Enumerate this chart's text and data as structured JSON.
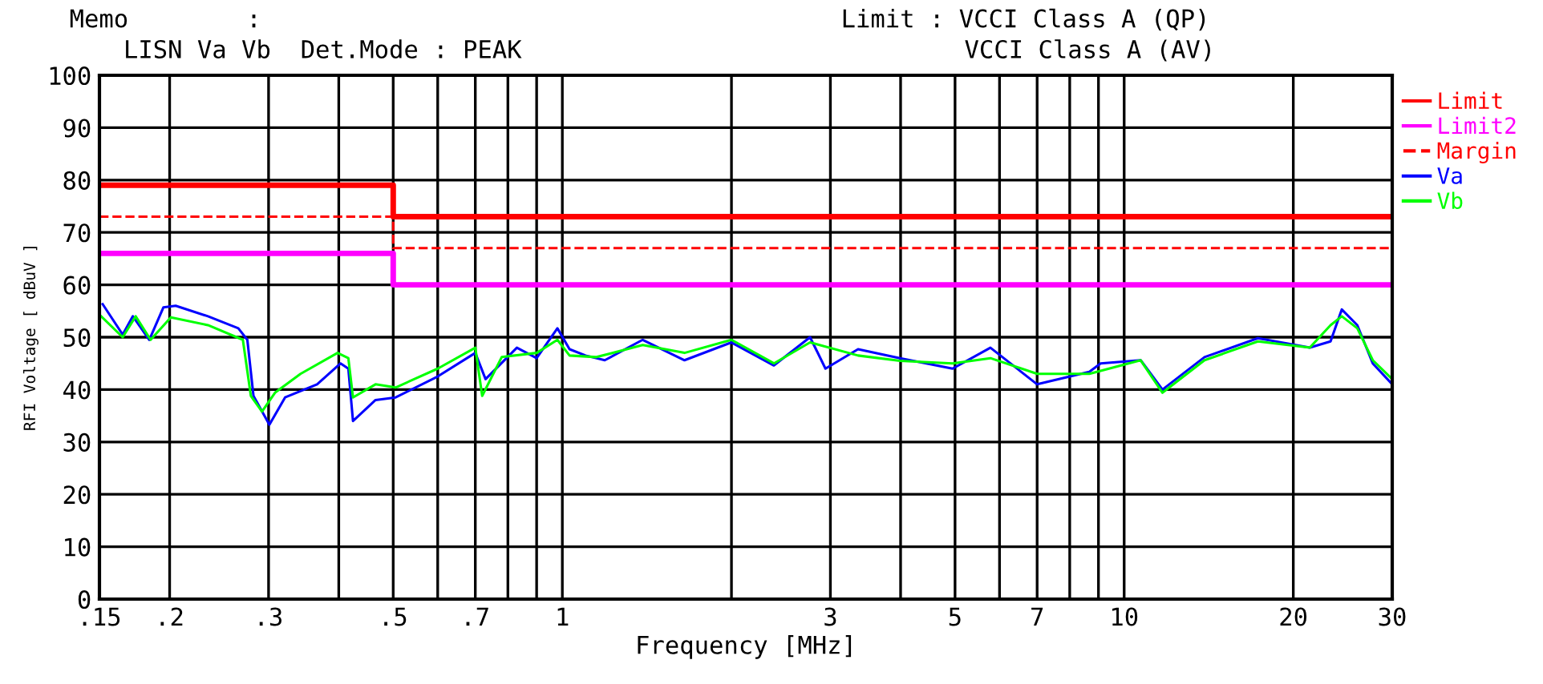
{
  "chart_data": {
    "type": "line",
    "xlabel": "Frequency [MHz]",
    "ylabel": "RFI Voltage [ dBuV ]",
    "annotations": [
      "Memo        :",
      "LISN Va Vb  Det.Mode : PEAK",
      "Limit : VCCI Class A (QP)",
      "VCCI Class A (AV)"
    ],
    "log": "x",
    "grid": true,
    "legend": "right",
    "xlim": [
      0.15,
      30
    ],
    "xticks": [
      {
        "value": 0.15,
        "label": ".15"
      },
      {
        "value": 0.2,
        "label": ".2"
      },
      {
        "value": 0.3,
        "label": ".3"
      },
      {
        "value": 0.4,
        "label": null
      },
      {
        "value": 0.5,
        "label": ".5"
      },
      {
        "value": 0.6,
        "label": null
      },
      {
        "value": 0.7,
        "label": ".7"
      },
      {
        "value": 0.8,
        "label": null
      },
      {
        "value": 0.9,
        "label": null
      },
      1,
      {
        "value": 2,
        "label": null
      },
      3,
      {
        "value": 4,
        "label": null
      },
      5,
      {
        "value": 6,
        "label": null
      },
      7,
      {
        "value": 8,
        "label": null
      },
      {
        "value": 9,
        "label": null
      },
      10,
      20,
      30
    ],
    "ylim": [
      0,
      100
    ],
    "yticks": [
      0,
      10,
      20,
      30,
      40,
      50,
      60,
      70,
      80,
      90,
      100
    ],
    "series": [
      {
        "name": "Limit",
        "color": "#ff0000",
        "x": [
          0.15,
          0.5,
          0.5,
          30
        ],
        "values": [
          79,
          79,
          73,
          73
        ]
      },
      {
        "name": "Limit2",
        "color": "#ff00ff",
        "x": [
          0.15,
          0.5,
          0.5,
          30
        ],
        "values": [
          66,
          66,
          60,
          60
        ]
      },
      {
        "name": "Margin",
        "color": "#ff0000",
        "line_style": "dashed",
        "x": [
          0.15,
          0.5,
          0.5,
          30
        ],
        "values": [
          73,
          73,
          67,
          67
        ]
      },
      {
        "name": "Va",
        "color": "#0000ff",
        "x": [
          0.152,
          0.165,
          0.172,
          0.184,
          0.195,
          0.205,
          0.234,
          0.265,
          0.275,
          0.282,
          0.301,
          0.321,
          0.366,
          0.403,
          0.416,
          0.424,
          0.465,
          0.505,
          0.6,
          0.7,
          0.73,
          0.83,
          0.9,
          0.98,
          1.03,
          1.1,
          1.19,
          1.39,
          1.65,
          2.0,
          2.38,
          2.76,
          2.94,
          3.36,
          3.99,
          4.95,
          5.78,
          7.0,
          8.67,
          9.08,
          10.7,
          11.7,
          13.9,
          17.3,
          21.4,
          23.3,
          24.4,
          26.0,
          27.7,
          30
        ],
        "values": [
          56.3,
          50.5,
          54,
          49.5,
          55.7,
          56,
          54,
          51.7,
          49.5,
          38.8,
          33.3,
          38.5,
          41,
          45,
          44,
          34,
          38,
          38.5,
          42.5,
          47,
          42,
          48,
          46,
          51.7,
          47.7,
          46.5,
          45.6,
          49.5,
          45.6,
          49,
          44.6,
          50,
          44,
          47.7,
          46,
          44,
          48,
          41,
          43.4,
          45,
          45.6,
          40,
          46.2,
          49.8,
          48,
          49.2,
          55.3,
          52.3,
          45,
          41
        ]
      },
      {
        "name": "Vb",
        "color": "#00ff00",
        "x": [
          0.151,
          0.165,
          0.174,
          0.185,
          0.201,
          0.234,
          0.27,
          0.279,
          0.292,
          0.308,
          0.342,
          0.398,
          0.416,
          0.424,
          0.465,
          0.505,
          0.6,
          0.7,
          0.72,
          0.78,
          0.9,
          0.98,
          1.03,
          1.15,
          1.39,
          1.65,
          2.0,
          2.38,
          2.76,
          3.36,
          3.99,
          4.95,
          5.78,
          7.0,
          8.67,
          10.7,
          11.7,
          13.9,
          17.3,
          21.4,
          23.3,
          24.4,
          26.0,
          27.7,
          30
        ],
        "values": [
          54,
          50,
          54,
          49.5,
          53.8,
          52.3,
          49.5,
          38.8,
          35.8,
          39.4,
          43,
          47,
          46,
          38.5,
          41,
          40.4,
          44,
          48,
          38.8,
          46.2,
          47,
          49.5,
          46.5,
          46.2,
          48.5,
          47,
          49.5,
          45,
          49,
          46.5,
          45.5,
          45,
          46,
          43,
          43,
          45.6,
          39.4,
          45.6,
          49.2,
          48,
          52.3,
          54,
          51.7,
          45.6,
          42
        ]
      }
    ]
  }
}
